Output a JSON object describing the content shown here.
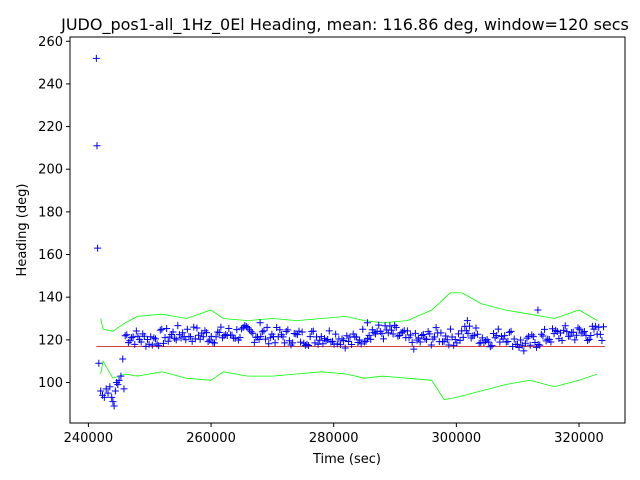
{
  "chart_data": {
    "type": "scatter",
    "title": "JUDO_pos1-all_1Hz_0El Heading, mean: 116.86 deg, window=120 secs",
    "xlabel": "Time (sec)",
    "ylabel": "Heading (deg)",
    "xlim": [
      237000,
      327500
    ],
    "ylim": [
      81,
      262
    ],
    "xticks": [
      240000,
      260000,
      280000,
      300000,
      320000
    ],
    "xtick_labels": [
      "240000",
      "260000",
      "280000",
      "300000",
      "320000"
    ],
    "yticks": [
      100,
      120,
      140,
      160,
      180,
      200,
      220,
      240,
      260
    ],
    "ytick_labels": [
      "100",
      "120",
      "140",
      "160",
      "180",
      "200",
      "220",
      "240",
      "260"
    ],
    "grid": false,
    "colors": {
      "points": "#0000ff",
      "mean": "#cc0000",
      "envelope": "#00ff00"
    },
    "series": [
      {
        "marker": "plus",
        "points": [
          [
            241300,
            252
          ],
          [
            241400,
            211
          ],
          [
            241500,
            163
          ],
          [
            241700,
            109
          ],
          [
            242000,
            96
          ],
          [
            242300,
            94
          ],
          [
            242600,
            93
          ],
          [
            242900,
            97
          ],
          [
            243200,
            95
          ],
          [
            243500,
            98
          ],
          [
            243800,
            93
          ],
          [
            244000,
            91
          ],
          [
            244200,
            89
          ],
          [
            244400,
            96
          ],
          [
            244600,
            100
          ],
          [
            244800,
            99
          ],
          [
            245000,
            101
          ],
          [
            245300,
            103
          ],
          [
            245600,
            111
          ],
          [
            245800,
            97
          ]
        ]
      }
    ],
    "band_series": {
      "marker": "plus",
      "x_range": [
        246000,
        324000
      ],
      "center_points": [
        [
          246000,
          122
        ],
        [
          250000,
          120
        ],
        [
          255000,
          123
        ],
        [
          260000,
          122
        ],
        [
          265000,
          123
        ],
        [
          270000,
          122
        ],
        [
          275000,
          121
        ],
        [
          280000,
          122
        ],
        [
          283000,
          119
        ],
        [
          286000,
          124
        ],
        [
          290000,
          123
        ],
        [
          293000,
          119
        ],
        [
          297000,
          122
        ],
        [
          300000,
          121
        ],
        [
          302000,
          124
        ],
        [
          305000,
          120
        ],
        [
          308000,
          123
        ],
        [
          311000,
          117
        ],
        [
          314000,
          121
        ],
        [
          318000,
          123
        ],
        [
          324000,
          123
        ]
      ],
      "spread": 4,
      "outliers": [
        [
          313300,
          134
        ],
        [
          301800,
          129
        ],
        [
          285500,
          128
        ],
        [
          268000,
          128
        ]
      ]
    },
    "mean_line": {
      "y": 116.86,
      "x_range": [
        241300,
        324200
      ]
    },
    "envelope": {
      "upper": [
        [
          242000,
          130
        ],
        [
          242400,
          125
        ],
        [
          244000,
          124
        ],
        [
          246000,
          128
        ],
        [
          248000,
          131
        ],
        [
          252000,
          132
        ],
        [
          256000,
          130
        ],
        [
          260000,
          134
        ],
        [
          262000,
          130
        ],
        [
          266000,
          129
        ],
        [
          270000,
          130
        ],
        [
          274000,
          129
        ],
        [
          278000,
          130
        ],
        [
          282000,
          131
        ],
        [
          285000,
          129
        ],
        [
          288000,
          128
        ],
        [
          292000,
          129
        ],
        [
          296000,
          134
        ],
        [
          299000,
          142
        ],
        [
          301000,
          142
        ],
        [
          304000,
          137
        ],
        [
          308000,
          134
        ],
        [
          312000,
          132
        ],
        [
          316000,
          130
        ],
        [
          320000,
          134
        ],
        [
          323000,
          129
        ]
      ],
      "lower": [
        [
          242000,
          104
        ],
        [
          242400,
          110
        ],
        [
          244000,
          102
        ],
        [
          246000,
          104
        ],
        [
          248000,
          103
        ],
        [
          252000,
          105
        ],
        [
          256000,
          102
        ],
        [
          260000,
          101
        ],
        [
          262000,
          105
        ],
        [
          266000,
          103
        ],
        [
          270000,
          103
        ],
        [
          274000,
          104
        ],
        [
          278000,
          105
        ],
        [
          282000,
          104
        ],
        [
          285000,
          102
        ],
        [
          288000,
          103
        ],
        [
          292000,
          102
        ],
        [
          296000,
          101
        ],
        [
          298000,
          92
        ],
        [
          300000,
          93
        ],
        [
          304000,
          96
        ],
        [
          308000,
          99
        ],
        [
          312000,
          101
        ],
        [
          316000,
          98
        ],
        [
          320000,
          101
        ],
        [
          323000,
          104
        ]
      ]
    }
  }
}
